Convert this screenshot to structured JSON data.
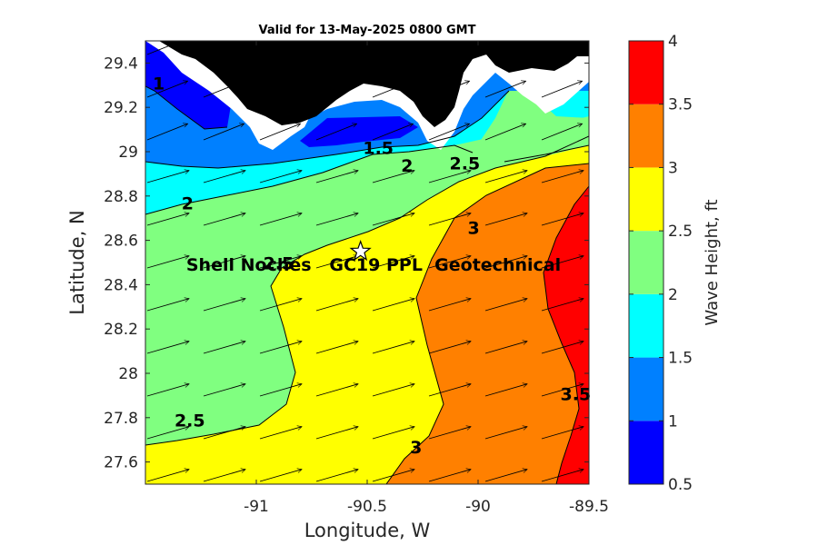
{
  "title": "Valid for 13-May-2025 0800 GMT",
  "chart_data": {
    "type": "contour-map",
    "title": "Valid for 13-May-2025 0800 GMT",
    "xlabel": "Longitude, W",
    "ylabel": "Latitude, N",
    "xlim": [
      -91.5,
      -89.5
    ],
    "ylim": [
      27.5,
      29.5
    ],
    "x_ticks": [
      -91,
      -90.5,
      -90,
      -89.5
    ],
    "x_tick_labels": [
      "-91",
      "-90.5",
      "-90",
      "-89.5"
    ],
    "y_ticks": [
      27.6,
      27.8,
      28,
      28.2,
      28.4,
      28.6,
      28.8,
      29,
      29.2,
      29.4
    ],
    "y_tick_labels": [
      "27.6",
      "27.8",
      "28",
      "28.2",
      "28.4",
      "28.6",
      "28.8",
      "29",
      "29.2",
      "29.4"
    ],
    "colorbar": {
      "label": "Wave Height, ft",
      "levels": [
        0.5,
        1,
        1.5,
        2,
        2.5,
        3,
        3.5,
        4
      ],
      "tick_labels": [
        "0.5",
        "1",
        "1.5",
        "2",
        "2.5",
        "3",
        "3.5",
        "4"
      ],
      "colors": [
        "#0000ff",
        "#0080ff",
        "#00ffff",
        "#80ff80",
        "#ffff00",
        "#ff8000",
        "#ff0000"
      ]
    },
    "contour_labels": [
      {
        "text": "1",
        "lon": -91.44,
        "lat": 29.28
      },
      {
        "text": "1.5",
        "lon": -90.45,
        "lat": 28.99
      },
      {
        "text": "2",
        "lon": -90.32,
        "lat": 28.91
      },
      {
        "text": "2.5",
        "lon": -90.06,
        "lat": 28.92
      },
      {
        "text": "2",
        "lon": -91.31,
        "lat": 28.74
      },
      {
        "text": "3",
        "lon": -90.02,
        "lat": 28.63
      },
      {
        "text": "2.5",
        "lon": -90.9,
        "lat": 28.47
      },
      {
        "text": "3.5",
        "lon": -89.56,
        "lat": 27.88
      },
      {
        "text": "2.5",
        "lon": -91.3,
        "lat": 27.76
      },
      {
        "text": "3",
        "lon": -90.28,
        "lat": 27.64
      }
    ],
    "site": {
      "name": "Shell Noches   GC19 PPL  Geotechnical",
      "lon": -90.53,
      "lat": 28.55
    },
    "land_color": "#000000",
    "wave_direction": "toward east-northeast"
  }
}
